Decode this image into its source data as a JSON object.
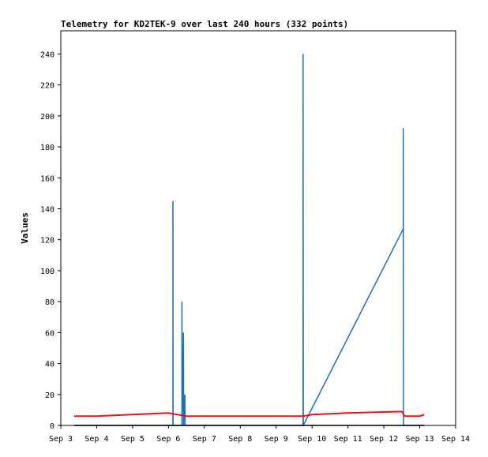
{
  "chart_data": {
    "type": "line",
    "title": "Telemetry for KD2TEK-9 over last 240 hours (332 points)",
    "xlabel": "",
    "ylabel": "Values",
    "x_ticks": [
      "Sep 3",
      "Sep 4",
      "Sep 5",
      "Sep 6",
      "Sep 7",
      "Sep 8",
      "Sep 9",
      "Sep 10",
      "Sep 11",
      "Sep 12",
      "Sep 13",
      "Sep 14"
    ],
    "y_ticks": [
      0,
      20,
      40,
      60,
      80,
      100,
      120,
      140,
      160,
      180,
      200,
      220,
      240
    ],
    "xlim": [
      "Sep 3",
      "Sep 14"
    ],
    "ylim": [
      0,
      255
    ],
    "grid": false,
    "legend": "none",
    "series": [
      {
        "color": "#1f6fb5",
        "points": [
          [
            "Sep 3 09:00",
            0
          ],
          [
            "Sep 6 03:00",
            0
          ],
          [
            "Sep 6 03:00",
            145
          ],
          [
            "Sep 6 03:05",
            0
          ],
          [
            "Sep 6 09:00",
            0
          ],
          [
            "Sep 6 09:00",
            80
          ],
          [
            "Sep 6 09:10",
            0
          ],
          [
            "Sep 6 10:00",
            60
          ],
          [
            "Sep 6 10:10",
            0
          ],
          [
            "Sep 6 11:00",
            20
          ],
          [
            "Sep 6 11:10",
            0
          ],
          [
            "Sep 9 18:00",
            0
          ],
          [
            "Sep 9 18:00",
            240
          ],
          [
            "Sep 9 18:10",
            0
          ],
          [
            "Sep 12 13:00",
            127
          ],
          [
            "Sep 12 13:00",
            192
          ],
          [
            "Sep 12 13:10",
            0
          ],
          [
            "Sep 13 03:00",
            0
          ]
        ]
      },
      {
        "color": "#ee1111",
        "points": [
          [
            "Sep 3 09:00",
            6
          ],
          [
            "Sep 4 00:00",
            6
          ],
          [
            "Sep 5 00:00",
            7
          ],
          [
            "Sep 6 00:00",
            8
          ],
          [
            "Sep 6 06:00",
            7
          ],
          [
            "Sep 6 12:00",
            6
          ],
          [
            "Sep 8 00:00",
            6
          ],
          [
            "Sep 9 18:00",
            6
          ],
          [
            "Sep 10 00:00",
            7
          ],
          [
            "Sep 11 00:00",
            8
          ],
          [
            "Sep 12 12:00",
            9
          ],
          [
            "Sep 12 14:00",
            6
          ],
          [
            "Sep 13 00:00",
            6
          ],
          [
            "Sep 13 03:00",
            7
          ]
        ]
      },
      {
        "color": "#000000",
        "points": [
          [
            "Sep 3 09:00",
            0
          ],
          [
            "Sep 13 03:00",
            0
          ]
        ]
      }
    ]
  }
}
